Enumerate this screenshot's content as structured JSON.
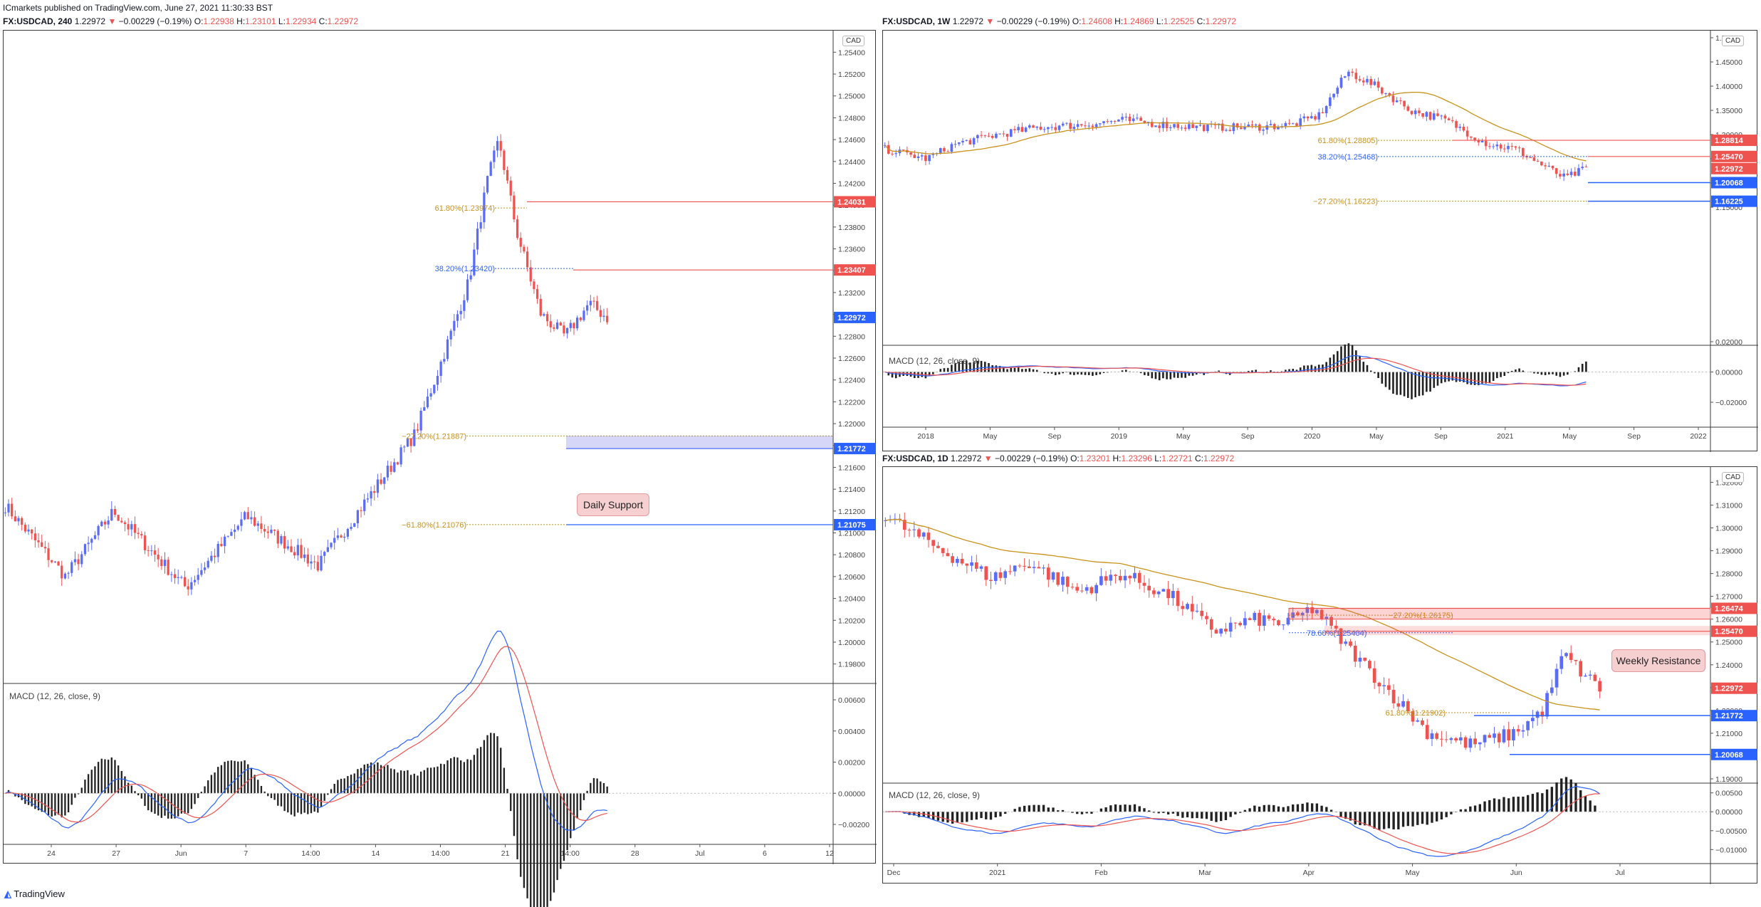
{
  "top_header": "ICmarkets published on TradingView.com, June 27, 2021 11:30:33 BST",
  "footer_logo": "TradingView",
  "colors": {
    "up": "#5b6cf6",
    "down": "#ef5350",
    "ma": "#c8921a",
    "fib_gold": "#c8921a",
    "fib_blue": "#2962ff",
    "macd": "#2962ff",
    "signal": "#ef5350",
    "hist": "#222"
  },
  "charts": [
    {
      "id": "h4",
      "header": {
        "symbol": "FX:USDCAD, 240",
        "close": "1.22972",
        "change": "−0.00229 (−0.19%)",
        "o": "1.22938",
        "h": "1.23101",
        "l": "1.22934",
        "c": "1.22972"
      },
      "currency": "CAD",
      "xticks": [
        "24",
        "27",
        "Jun",
        "7",
        "14:00",
        "14",
        "14:00",
        "21",
        "14:00",
        "28",
        "Jul",
        "6",
        "12"
      ],
      "yticks": [
        "1.25400",
        "1.25200",
        "1.25000",
        "1.24800",
        "1.24600",
        "1.24400",
        "1.24200",
        "1.24000",
        "1.23800",
        "1.23600",
        "1.23400",
        "1.23200",
        "1.23000",
        "1.22800",
        "1.22600",
        "1.22400",
        "1.22200",
        "1.22000",
        "1.21800",
        "1.21600",
        "1.21400",
        "1.21200",
        "1.21000",
        "1.20800",
        "1.20600",
        "1.20400",
        "1.20200",
        "1.20000",
        "1.19800"
      ],
      "price_tags": [
        {
          "text": "1.24031",
          "color": "#ef5350"
        },
        {
          "text": "1.23407",
          "color": "#ef5350"
        },
        {
          "text": "1.22972",
          "color": "#2962ff"
        },
        {
          "text": "1.21772",
          "color": "#2962ff"
        },
        {
          "text": "1.21075",
          "color": "#2962ff"
        }
      ],
      "fib_labels": [
        "61.80%(1.23974)",
        "38.20%(1.23420)",
        "−27.20%(1.21887)",
        "−61.80%(1.21076)"
      ],
      "callout": "Daily Support",
      "macd_label": "MACD (12, 26, close, 9)",
      "macd_ticks": [
        "0.00600",
        "0.00400",
        "0.00200",
        "0.00000",
        "−0.00200"
      ]
    },
    {
      "id": "w1",
      "header": {
        "symbol": "FX:USDCAD, 1W",
        "close": "1.22972",
        "change": "−0.00229 (−0.19%)",
        "o": "1.24608",
        "h": "1.24869",
        "l": "1.22525",
        "c": "1.22972"
      },
      "currency": "CAD",
      "xticks": [
        "2018",
        "May",
        "Sep",
        "2019",
        "May",
        "Sep",
        "2020",
        "May",
        "Sep",
        "2021",
        "May",
        "Sep",
        "2022"
      ],
      "yticks": [
        "1.50000",
        "1.45000",
        "1.40000",
        "1.35000",
        "1.30000",
        "1.25000",
        "1.20000",
        "1.15000"
      ],
      "price_tags": [
        {
          "text": "1.28814",
          "color": "#ef5350"
        },
        {
          "text": "1.25470",
          "color": "#ef5350"
        },
        {
          "text": "1.22972",
          "color": "#ef5350"
        },
        {
          "text": "1.20068",
          "color": "#2962ff"
        },
        {
          "text": "1.16225",
          "color": "#2962ff"
        }
      ],
      "fib_labels": [
        "61.80%(1.28805)",
        "38.20%(1.25468)",
        "−27.20%(1.16223)"
      ],
      "macd_label": "MACD (12, 26, close, 9)",
      "macd_ticks": [
        "0.02000",
        "0.00000",
        "−0.02000"
      ]
    },
    {
      "id": "d1",
      "header": {
        "symbol": "FX:USDCAD, 1D",
        "close": "1.22972",
        "change": "−0.00229 (−0.19%)",
        "o": "1.23201",
        "h": "1.23296",
        "l": "1.22721",
        "c": "1.22972"
      },
      "currency": "CAD",
      "xticks": [
        "Dec",
        "2021",
        "Feb",
        "Mar",
        "Apr",
        "May",
        "Jun",
        "Jul"
      ],
      "yticks": [
        "1.32000",
        "1.31000",
        "1.30000",
        "1.29000",
        "1.28000",
        "1.27000",
        "1.26000",
        "1.25000",
        "1.24000",
        "1.23000",
        "1.22000",
        "1.21000",
        "1.20000",
        "1.19000"
      ],
      "price_tags": [
        {
          "text": "1.26474",
          "color": "#ef5350"
        },
        {
          "text": "1.25470",
          "color": "#ef5350"
        },
        {
          "text": "1.22972",
          "color": "#ef5350"
        },
        {
          "text": "1.21772",
          "color": "#2962ff"
        },
        {
          "text": "1.20068",
          "color": "#2962ff"
        }
      ],
      "fib_labels": [
        "−27.20%(1.26175)",
        "78.60%(1.25404)",
        "61.80%(1.21902)"
      ],
      "callout": "Weekly Resistance",
      "macd_label": "MACD (12, 26, close, 9)",
      "macd_ticks": [
        "0.00500",
        "0.00000",
        "−0.00500",
        "−0.01000"
      ]
    }
  ]
}
